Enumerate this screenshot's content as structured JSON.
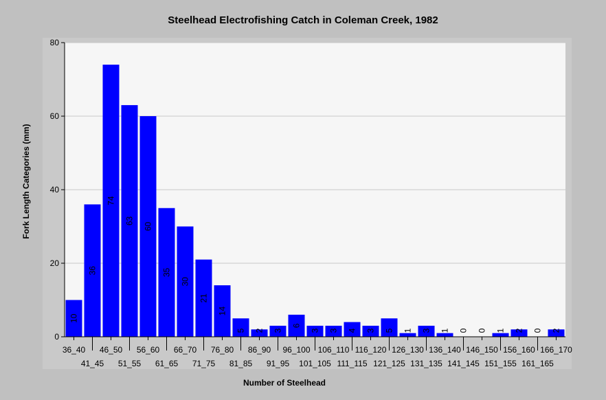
{
  "chart_data": {
    "type": "bar",
    "title": "Steelhead Electrofishing Catch in Coleman Creek, 1982",
    "xlabel": "Number of Steelhead",
    "ylabel": "Fork Length Categories (mm)",
    "ylim": [
      0,
      80
    ],
    "yticks": [
      0,
      20,
      40,
      60,
      80
    ],
    "grid": true,
    "categories": [
      "36_40",
      "41_45",
      "46_50",
      "51_55",
      "56_60",
      "61_65",
      "66_70",
      "71_75",
      "76_80",
      "81_85",
      "86_90",
      "91_95",
      "96_100",
      "101_105",
      "106_110",
      "111_115",
      "116_120",
      "121_125",
      "126_130",
      "131_135",
      "136_140",
      "141_145",
      "146_150",
      "151_155",
      "156_160",
      "161_165",
      "166_170"
    ],
    "values": [
      10,
      36,
      74,
      63,
      60,
      35,
      30,
      21,
      14,
      5,
      2,
      3,
      6,
      3,
      3,
      4,
      3,
      5,
      1,
      3,
      1,
      0,
      0,
      1,
      2,
      0,
      2
    ],
    "colors": {
      "background": "#c0c0c0",
      "plot_area": "#f6f6f6",
      "bar": "#0000ff",
      "grid": "#c8c8c8",
      "axis": "#000000"
    }
  }
}
